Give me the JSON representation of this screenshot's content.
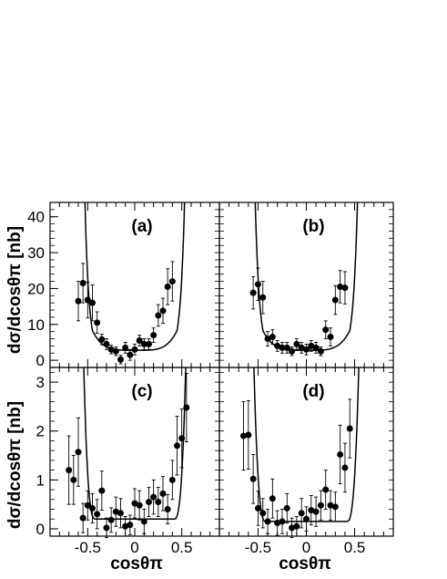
{
  "chart_data": [
    {
      "id": "a",
      "type": "scatter",
      "panel_label": "(a)",
      "ylabel": "dσ/dcosθπ [nb]",
      "xlabel": "",
      "xlim": [
        -0.9,
        0.9
      ],
      "ylim": [
        -2,
        44
      ],
      "yticks": [
        0,
        10,
        20,
        30,
        40
      ],
      "xticks": [],
      "x": [
        -0.6,
        -0.55,
        -0.5,
        -0.45,
        -0.4,
        -0.35,
        -0.3,
        -0.25,
        -0.2,
        -0.15,
        -0.1,
        -0.05,
        0.0,
        0.05,
        0.1,
        0.15,
        0.2,
        0.25,
        0.3,
        0.35,
        0.4,
        0.45,
        0.5,
        0.55
      ],
      "y": [
        16.5,
        21.5,
        16.8,
        16.0,
        10.5,
        5.8,
        4.5,
        3.0,
        2.5,
        0.2,
        3.5,
        1.5,
        3.0,
        5.5,
        4.5,
        4.5,
        7.0,
        12.5,
        13.8,
        20.5,
        22.0,
        0,
        0,
        0
      ],
      "yerr": [
        5.5,
        5.5,
        5.0,
        5.0,
        3.0,
        1.5,
        1.5,
        1.2,
        1.2,
        1.2,
        1.5,
        1.5,
        1.5,
        1.5,
        1.5,
        1.5,
        2.0,
        3.0,
        3.5,
        5.0,
        5.5,
        0,
        0,
        0
      ],
      "n_points": 21,
      "curve": {
        "type": "fit",
        "a": 2.8,
        "b": 5.5,
        "p": 2.2
      }
    },
    {
      "id": "b",
      "type": "scatter",
      "panel_label": "(b)",
      "ylabel": "",
      "xlabel": "",
      "xlim": [
        -0.9,
        0.9
      ],
      "ylim": [
        -2,
        44
      ],
      "yticks": [],
      "xticks": [],
      "x": [
        -0.55,
        -0.5,
        -0.45,
        -0.4,
        -0.35,
        -0.3,
        -0.25,
        -0.2,
        -0.15,
        -0.1,
        -0.05,
        0.0,
        0.05,
        0.1,
        0.15,
        0.2,
        0.25,
        0.3,
        0.35,
        0.4,
        0.45
      ],
      "y": [
        18.8,
        21.2,
        17.5,
        6.0,
        6.5,
        4.0,
        3.5,
        3.5,
        2.5,
        4.5,
        3.5,
        3.0,
        4.0,
        3.5,
        2.5,
        8.5,
        6.5,
        16.8,
        20.5,
        20.2,
        0
      ],
      "yerr": [
        4.5,
        4.5,
        4.5,
        2.0,
        2.0,
        1.5,
        1.5,
        1.5,
        1.2,
        1.5,
        1.5,
        1.5,
        1.5,
        1.5,
        1.2,
        2.5,
        2.5,
        4.0,
        4.5,
        4.5,
        0
      ],
      "n_points": 20,
      "curve": {
        "type": "fit",
        "a": 2.8,
        "b": 5.5,
        "p": 2.2
      }
    },
    {
      "id": "c",
      "type": "scatter",
      "panel_label": "(c)",
      "ylabel": "dσ/dcosθπ [nb]",
      "xlabel": "cosθπ",
      "xlim": [
        -0.9,
        0.9
      ],
      "ylim": [
        -0.15,
        3.3
      ],
      "yticks": [
        0,
        1,
        2,
        3
      ],
      "xticks": [
        -0.5,
        0,
        0.5
      ],
      "x": [
        -0.7,
        -0.65,
        -0.6,
        -0.55,
        -0.5,
        -0.45,
        -0.4,
        -0.35,
        -0.3,
        -0.25,
        -0.2,
        -0.15,
        -0.1,
        -0.05,
        0.0,
        0.05,
        0.1,
        0.15,
        0.2,
        0.25,
        0.3,
        0.35,
        0.4,
        0.45,
        0.5,
        0.55,
        0.6
      ],
      "y": [
        1.2,
        1.0,
        1.57,
        0.22,
        0.48,
        0.42,
        0.3,
        0.78,
        0.02,
        0.18,
        0.35,
        0.32,
        0.05,
        0.08,
        0.52,
        0.48,
        0.15,
        0.55,
        0.65,
        0.55,
        0.72,
        0.4,
        1.0,
        1.7,
        1.85,
        2.48,
        0
      ],
      "yerr": [
        0.7,
        0.5,
        0.7,
        0.3,
        0.3,
        0.3,
        0.3,
        0.4,
        0.2,
        0.25,
        0.3,
        0.3,
        0.2,
        0.2,
        0.3,
        0.3,
        0.25,
        0.3,
        0.35,
        0.3,
        0.35,
        0.3,
        0.4,
        0.6,
        0.6,
        0.7,
        0
      ],
      "n_points": 26,
      "curve": {
        "type": "flat-edge",
        "floor": 0.2
      }
    },
    {
      "id": "d",
      "type": "scatter",
      "panel_label": "(d)",
      "ylabel": "",
      "xlabel": "cosθπ",
      "xlim": [
        -0.9,
        0.9
      ],
      "ylim": [
        -0.15,
        3.3
      ],
      "yticks": [],
      "xticks": [
        -0.5,
        0,
        0.5
      ],
      "x": [
        -0.65,
        -0.6,
        -0.55,
        -0.5,
        -0.45,
        -0.4,
        -0.35,
        -0.3,
        -0.25,
        -0.2,
        -0.15,
        -0.1,
        -0.05,
        0.0,
        0.05,
        0.1,
        0.15,
        0.2,
        0.25,
        0.3,
        0.35,
        0.4,
        0.45,
        0.5,
        0.55,
        0.6
      ],
      "y": [
        1.9,
        1.92,
        1.02,
        0.42,
        0.32,
        0.15,
        0.62,
        0.12,
        0.15,
        0.42,
        0.02,
        0.05,
        0.32,
        0.2,
        0.38,
        0.35,
        0.48,
        0.8,
        0.48,
        0.45,
        1.52,
        1.25,
        2.05,
        0,
        0,
        0
      ],
      "yerr": [
        0.7,
        0.7,
        0.5,
        0.35,
        0.3,
        0.25,
        0.4,
        0.25,
        0.25,
        0.3,
        0.2,
        0.2,
        0.3,
        0.25,
        0.3,
        0.3,
        0.3,
        0.4,
        0.3,
        0.3,
        0.6,
        0.5,
        0.6,
        0,
        0,
        0
      ],
      "n_points": 23,
      "curve": {
        "type": "flat-edge",
        "floor": 0.15
      }
    }
  ]
}
